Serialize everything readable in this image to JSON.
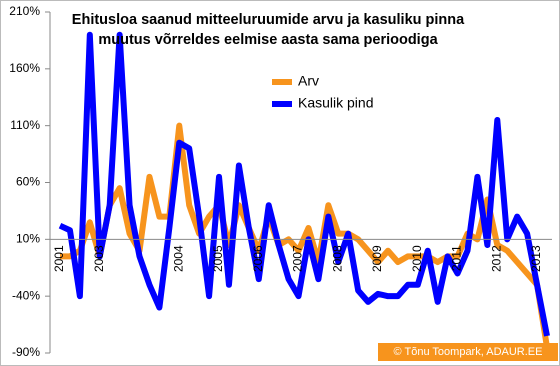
{
  "chart_data": {
    "type": "line",
    "title": [
      "Ehitusloa saanud mitteeluruumide arvu ja kasuliku pinna",
      "muutus võrreldes eelmise aasta sama perioodiga"
    ],
    "copyright": "© Tõnu Toompark, ADAUR.EE",
    "categories": [
      "2001",
      null,
      null,
      null,
      "2003",
      null,
      null,
      null,
      null,
      null,
      null,
      null,
      "2004",
      null,
      null,
      null,
      "2005",
      null,
      null,
      null,
      "2006",
      null,
      null,
      null,
      "2007",
      null,
      null,
      null,
      "2008",
      null,
      null,
      null,
      "2009",
      null,
      null,
      null,
      "2010",
      null,
      null,
      null,
      "2011",
      null,
      null,
      null,
      "2012",
      null,
      null,
      null,
      "2013",
      null
    ],
    "series": [
      {
        "name": "Arv",
        "color": "#f7941d",
        "width": 6,
        "values": [
          -5,
          -5,
          0,
          25,
          -5,
          40,
          55,
          15,
          0,
          65,
          30,
          30,
          110,
          40,
          15,
          30,
          40,
          5,
          40,
          20,
          0,
          30,
          5,
          10,
          0,
          20,
          -10,
          40,
          15,
          15,
          10,
          0,
          -10,
          0,
          -10,
          -5,
          -5,
          -5,
          -10,
          -5,
          -5,
          15,
          10,
          45,
          5,
          0,
          -10,
          -20,
          -30,
          -85
        ]
      },
      {
        "name": "Kasulik pind",
        "color": "#0000ff",
        "width": 6,
        "values": [
          22,
          18,
          -40,
          190,
          -5,
          40,
          190,
          40,
          -5,
          -30,
          -50,
          20,
          95,
          90,
          30,
          -40,
          65,
          -30,
          75,
          20,
          -25,
          40,
          5,
          -25,
          -40,
          10,
          -25,
          30,
          -10,
          15,
          -35,
          -45,
          -38,
          -40,
          -40,
          -30,
          -30,
          0,
          -45,
          -5,
          -20,
          0,
          65,
          5,
          115,
          10,
          30,
          15,
          -30,
          -75
        ]
      }
    ],
    "ylim": [
      -90,
      210
    ],
    "yticks": [
      {
        "value": -90,
        "label": "-90%"
      },
      {
        "value": -40,
        "label": "-40%"
      },
      {
        "value": 10,
        "label": "10%"
      },
      {
        "value": 60,
        "label": "60%"
      },
      {
        "value": 110,
        "label": "110%"
      },
      {
        "value": 160,
        "label": "160%"
      },
      {
        "value": 210,
        "label": "210%"
      }
    ],
    "axis_at": 10,
    "grid": false
  }
}
